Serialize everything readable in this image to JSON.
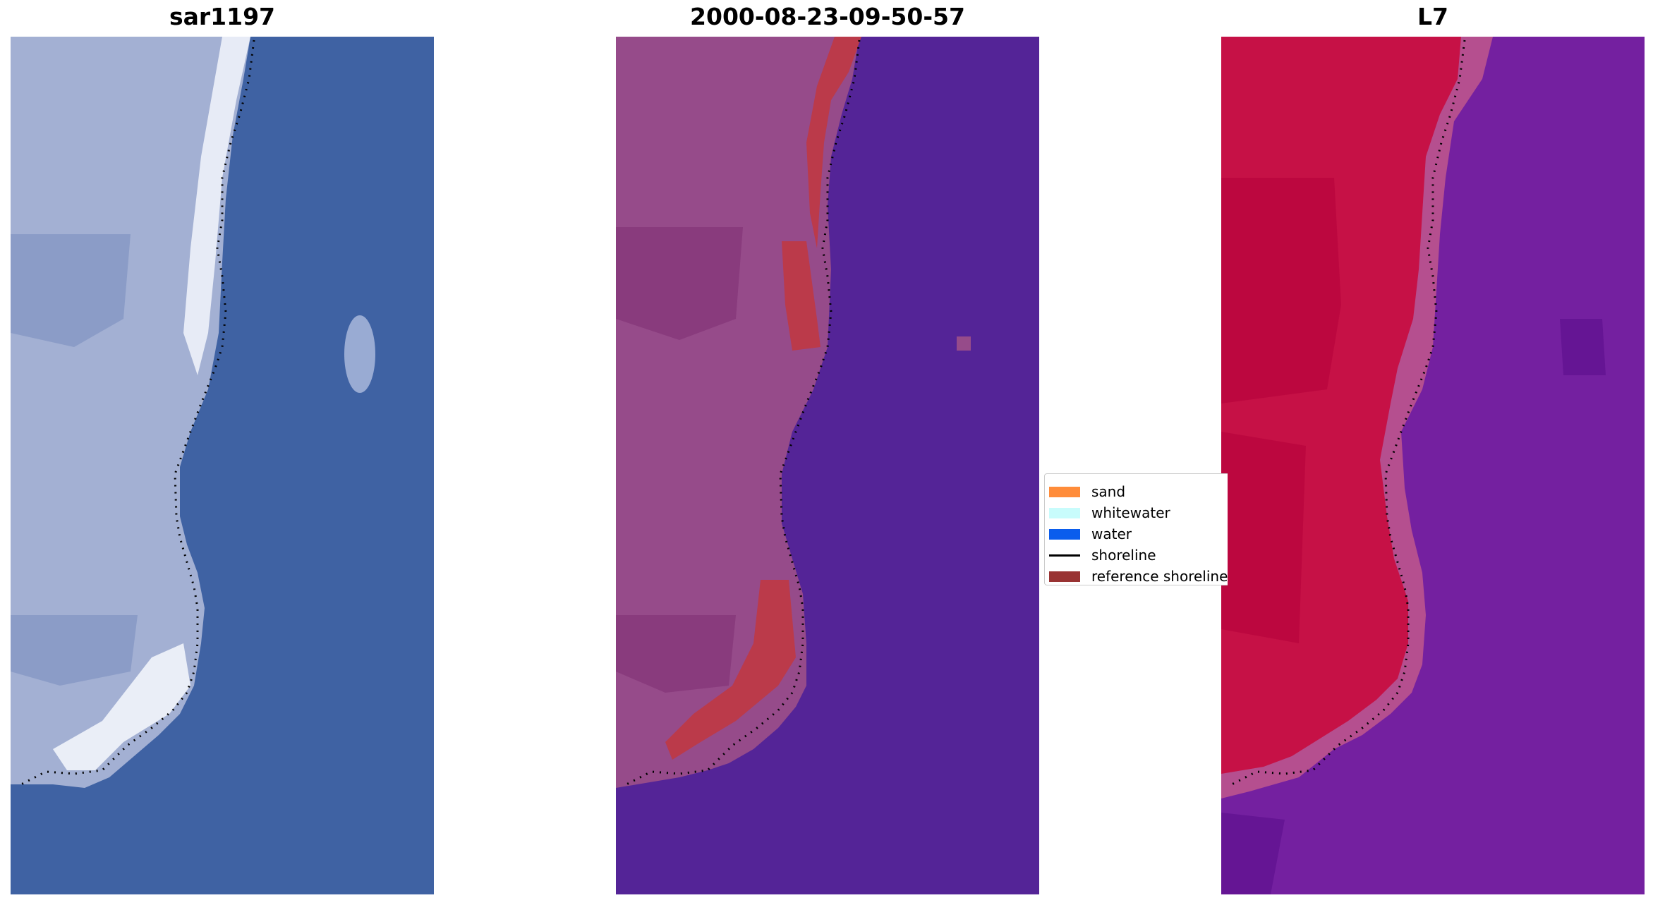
{
  "panels": {
    "rgb": {
      "title": "sar1197"
    },
    "classified": {
      "title": "2000-08-23-09-50-57"
    },
    "index": {
      "title": "L7"
    }
  },
  "legend": {
    "items": [
      {
        "label": "sand",
        "type": "patch",
        "color": "#ff8c3a"
      },
      {
        "label": "whitewater",
        "type": "patch",
        "color": "#c8fcfc"
      },
      {
        "label": "water",
        "type": "patch",
        "color": "#0b5ded"
      },
      {
        "label": "shoreline",
        "type": "line",
        "color": "#000000"
      },
      {
        "label": "reference shoreline",
        "type": "patch",
        "color": "#993333"
      }
    ]
  },
  "colors": {
    "rgb_water": "#3f62a3",
    "rgb_land": "#9aa8cf",
    "rgb_whitewater": "#e6ecf6",
    "classified_water": "#542497",
    "classified_land": "#964b8a",
    "classified_reference": "#bb3a4a",
    "index_land": "#c61146",
    "index_water": "#7420a0",
    "index_transition": "#b54f8f"
  }
}
